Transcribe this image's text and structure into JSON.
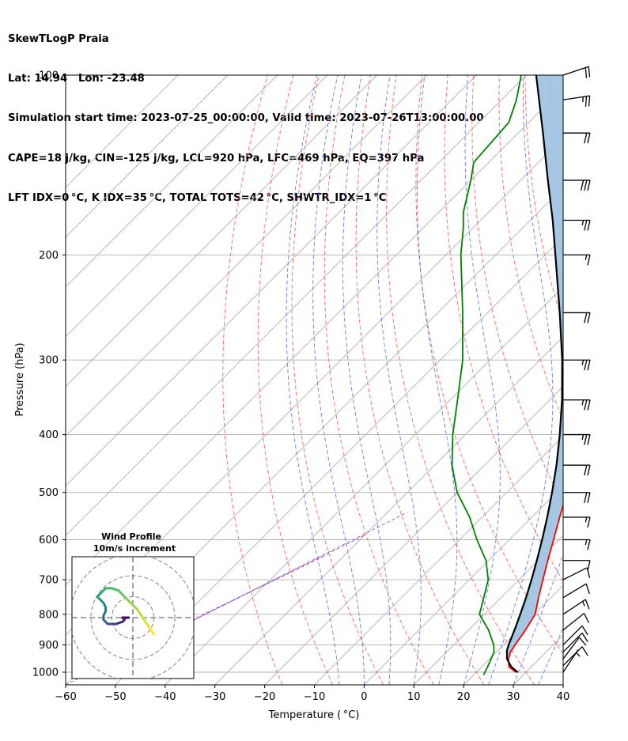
{
  "header": {
    "line1": "SkewTLogP Praia",
    "line2": "Lat: 14.94   Lon: -23.48",
    "line3": "Simulation start time: 2023-07-25_00:00:00, Valid time: 2023-07-26T13:00:00.00",
    "line4": "CAPE=18 j/kg, CIN=-125 j/kg, LCL=920 hPa, LFC=469 hPa, EQ=397 hPa",
    "line5": "LFT IDX=0 °C, K IDX=35 °C, TOTAL TOTS=42 °C, SHWTR_IDX=1 °C"
  },
  "chart_data": {
    "type": "line",
    "subtype": "skew-t log-p",
    "xlabel": "Temperature ( °C)",
    "ylabel": "Pressure (hPa)",
    "xlim": [
      -60,
      40
    ],
    "ylim": [
      1050,
      100
    ],
    "y_scale": "log",
    "skew": 45,
    "x_ticks": [
      -60,
      -50,
      -40,
      -30,
      -20,
      -10,
      0,
      10,
      20,
      30,
      40
    ],
    "y_ticks": [
      1000,
      900,
      800,
      700,
      600,
      500,
      400,
      300,
      200,
      100
    ],
    "grid": true,
    "series": [
      {
        "name": "temperature",
        "color": "#ff0000",
        "points": [
          [
            1000,
            28
          ],
          [
            980,
            25.5
          ],
          [
            950,
            23.8
          ],
          [
            925,
            22.8
          ],
          [
            900,
            22.3
          ],
          [
            850,
            21.4
          ],
          [
            800,
            20.2
          ],
          [
            750,
            17.5
          ],
          [
            700,
            14.8
          ],
          [
            650,
            11.9
          ],
          [
            600,
            8.9
          ],
          [
            550,
            5.6
          ],
          [
            500,
            2.1
          ],
          [
            470,
            -0.9
          ],
          [
            450,
            -2.8
          ],
          [
            400,
            -7.8
          ],
          [
            350,
            -13.9
          ],
          [
            300,
            -21.0
          ],
          [
            250,
            -29.8
          ],
          [
            200,
            -40.5
          ],
          [
            175,
            -47.0
          ],
          [
            160,
            -52.5
          ],
          [
            150,
            -58
          ],
          [
            140,
            -59
          ],
          [
            130,
            -60
          ],
          [
            120,
            -64
          ],
          [
            110,
            -70
          ],
          [
            100,
            -76
          ]
        ]
      },
      {
        "name": "dewpoint",
        "color": "#008000",
        "points": [
          [
            1010,
            22
          ],
          [
            980,
            21.2
          ],
          [
            950,
            20.3
          ],
          [
            925,
            19.5
          ],
          [
            900,
            18
          ],
          [
            850,
            14
          ],
          [
            800,
            9
          ],
          [
            750,
            6.5
          ],
          [
            700,
            3.8
          ],
          [
            650,
            -0.5
          ],
          [
            600,
            -6.5
          ],
          [
            550,
            -12.5
          ],
          [
            500,
            -20
          ],
          [
            450,
            -26.5
          ],
          [
            400,
            -32.5
          ],
          [
            350,
            -38.5
          ],
          [
            300,
            -45.5
          ],
          [
            250,
            -55
          ],
          [
            200,
            -67
          ],
          [
            180,
            -72
          ],
          [
            170,
            -75
          ],
          [
            150,
            -80
          ],
          [
            140,
            -83
          ],
          [
            120,
            -84
          ],
          [
            110,
            -87
          ],
          [
            100,
            -91
          ]
        ]
      },
      {
        "name": "parcel",
        "color": "#000000",
        "points": [
          [
            1000,
            28.3
          ],
          [
            980,
            26
          ],
          [
            950,
            23.5
          ],
          [
            920,
            21.8
          ],
          [
            900,
            21
          ],
          [
            850,
            19.2
          ],
          [
            800,
            17.2
          ],
          [
            750,
            15
          ],
          [
            700,
            12.5
          ],
          [
            650,
            9.7
          ],
          [
            600,
            6.6
          ],
          [
            550,
            3.1
          ],
          [
            500,
            -0.9
          ],
          [
            450,
            -5.5
          ],
          [
            400,
            -11
          ],
          [
            350,
            -17.5
          ],
          [
            300,
            -25.5
          ],
          [
            250,
            -35.5
          ],
          [
            200,
            -48
          ],
          [
            175,
            -55.5
          ],
          [
            150,
            -64.5
          ],
          [
            125,
            -75
          ],
          [
            100,
            -88
          ]
        ]
      }
    ],
    "cape_region": {
      "color": "#a0c4e2",
      "between": [
        "temperature",
        "parcel"
      ]
    },
    "dry_adiabats_theta_c": [
      -20,
      -10,
      0,
      10,
      20,
      30,
      40,
      50,
      60,
      70,
      80,
      90,
      100,
      110,
      120,
      130,
      140
    ],
    "moist_adiabats_c": [
      -5,
      0,
      5,
      10,
      15,
      20,
      25,
      30,
      35
    ],
    "mixing_ratio": {
      "color": "#800080"
    },
    "wind_barbs": {
      "pressures": [
        1000,
        975,
        950,
        925,
        900,
        850,
        800,
        750,
        700,
        650,
        600,
        550,
        500,
        450,
        400,
        350,
        300,
        250,
        200,
        175,
        150,
        125,
        110,
        100
      ],
      "u": [
        -2,
        -3,
        -3,
        -4,
        -4,
        -5,
        -6,
        -5,
        -4,
        -6,
        -7,
        -9,
        -10,
        -11,
        -12,
        -13,
        -12,
        -10,
        -9,
        -12,
        -15,
        -11,
        -13,
        -9
      ],
      "v": [
        -3,
        -3,
        -4,
        -4,
        -4,
        -4,
        -4,
        -3,
        -2,
        0,
        0,
        0,
        0,
        0,
        0,
        0,
        0,
        0,
        0,
        0,
        0,
        0,
        -2,
        -3
      ]
    },
    "hodograph": {
      "title": "Wind Profile",
      "subtitle": "10m/s increment",
      "ring_step": 10,
      "u": [
        -2,
        -4,
        -5,
        -4,
        -5,
        -8,
        -10,
        -12,
        -13,
        -14,
        -14,
        -13,
        -13,
        -14,
        -16,
        -17,
        -15,
        -13,
        -10,
        -7,
        -5,
        -3,
        -1,
        2,
        4,
        6,
        8,
        10
      ],
      "v": [
        0,
        0,
        0,
        -1,
        -2,
        -3,
        -3,
        -3,
        -2,
        -1,
        1,
        3,
        5,
        7,
        9,
        10,
        12,
        14,
        14,
        13,
        11,
        9,
        7,
        4,
        1,
        -2,
        -5,
        -8
      ]
    }
  }
}
